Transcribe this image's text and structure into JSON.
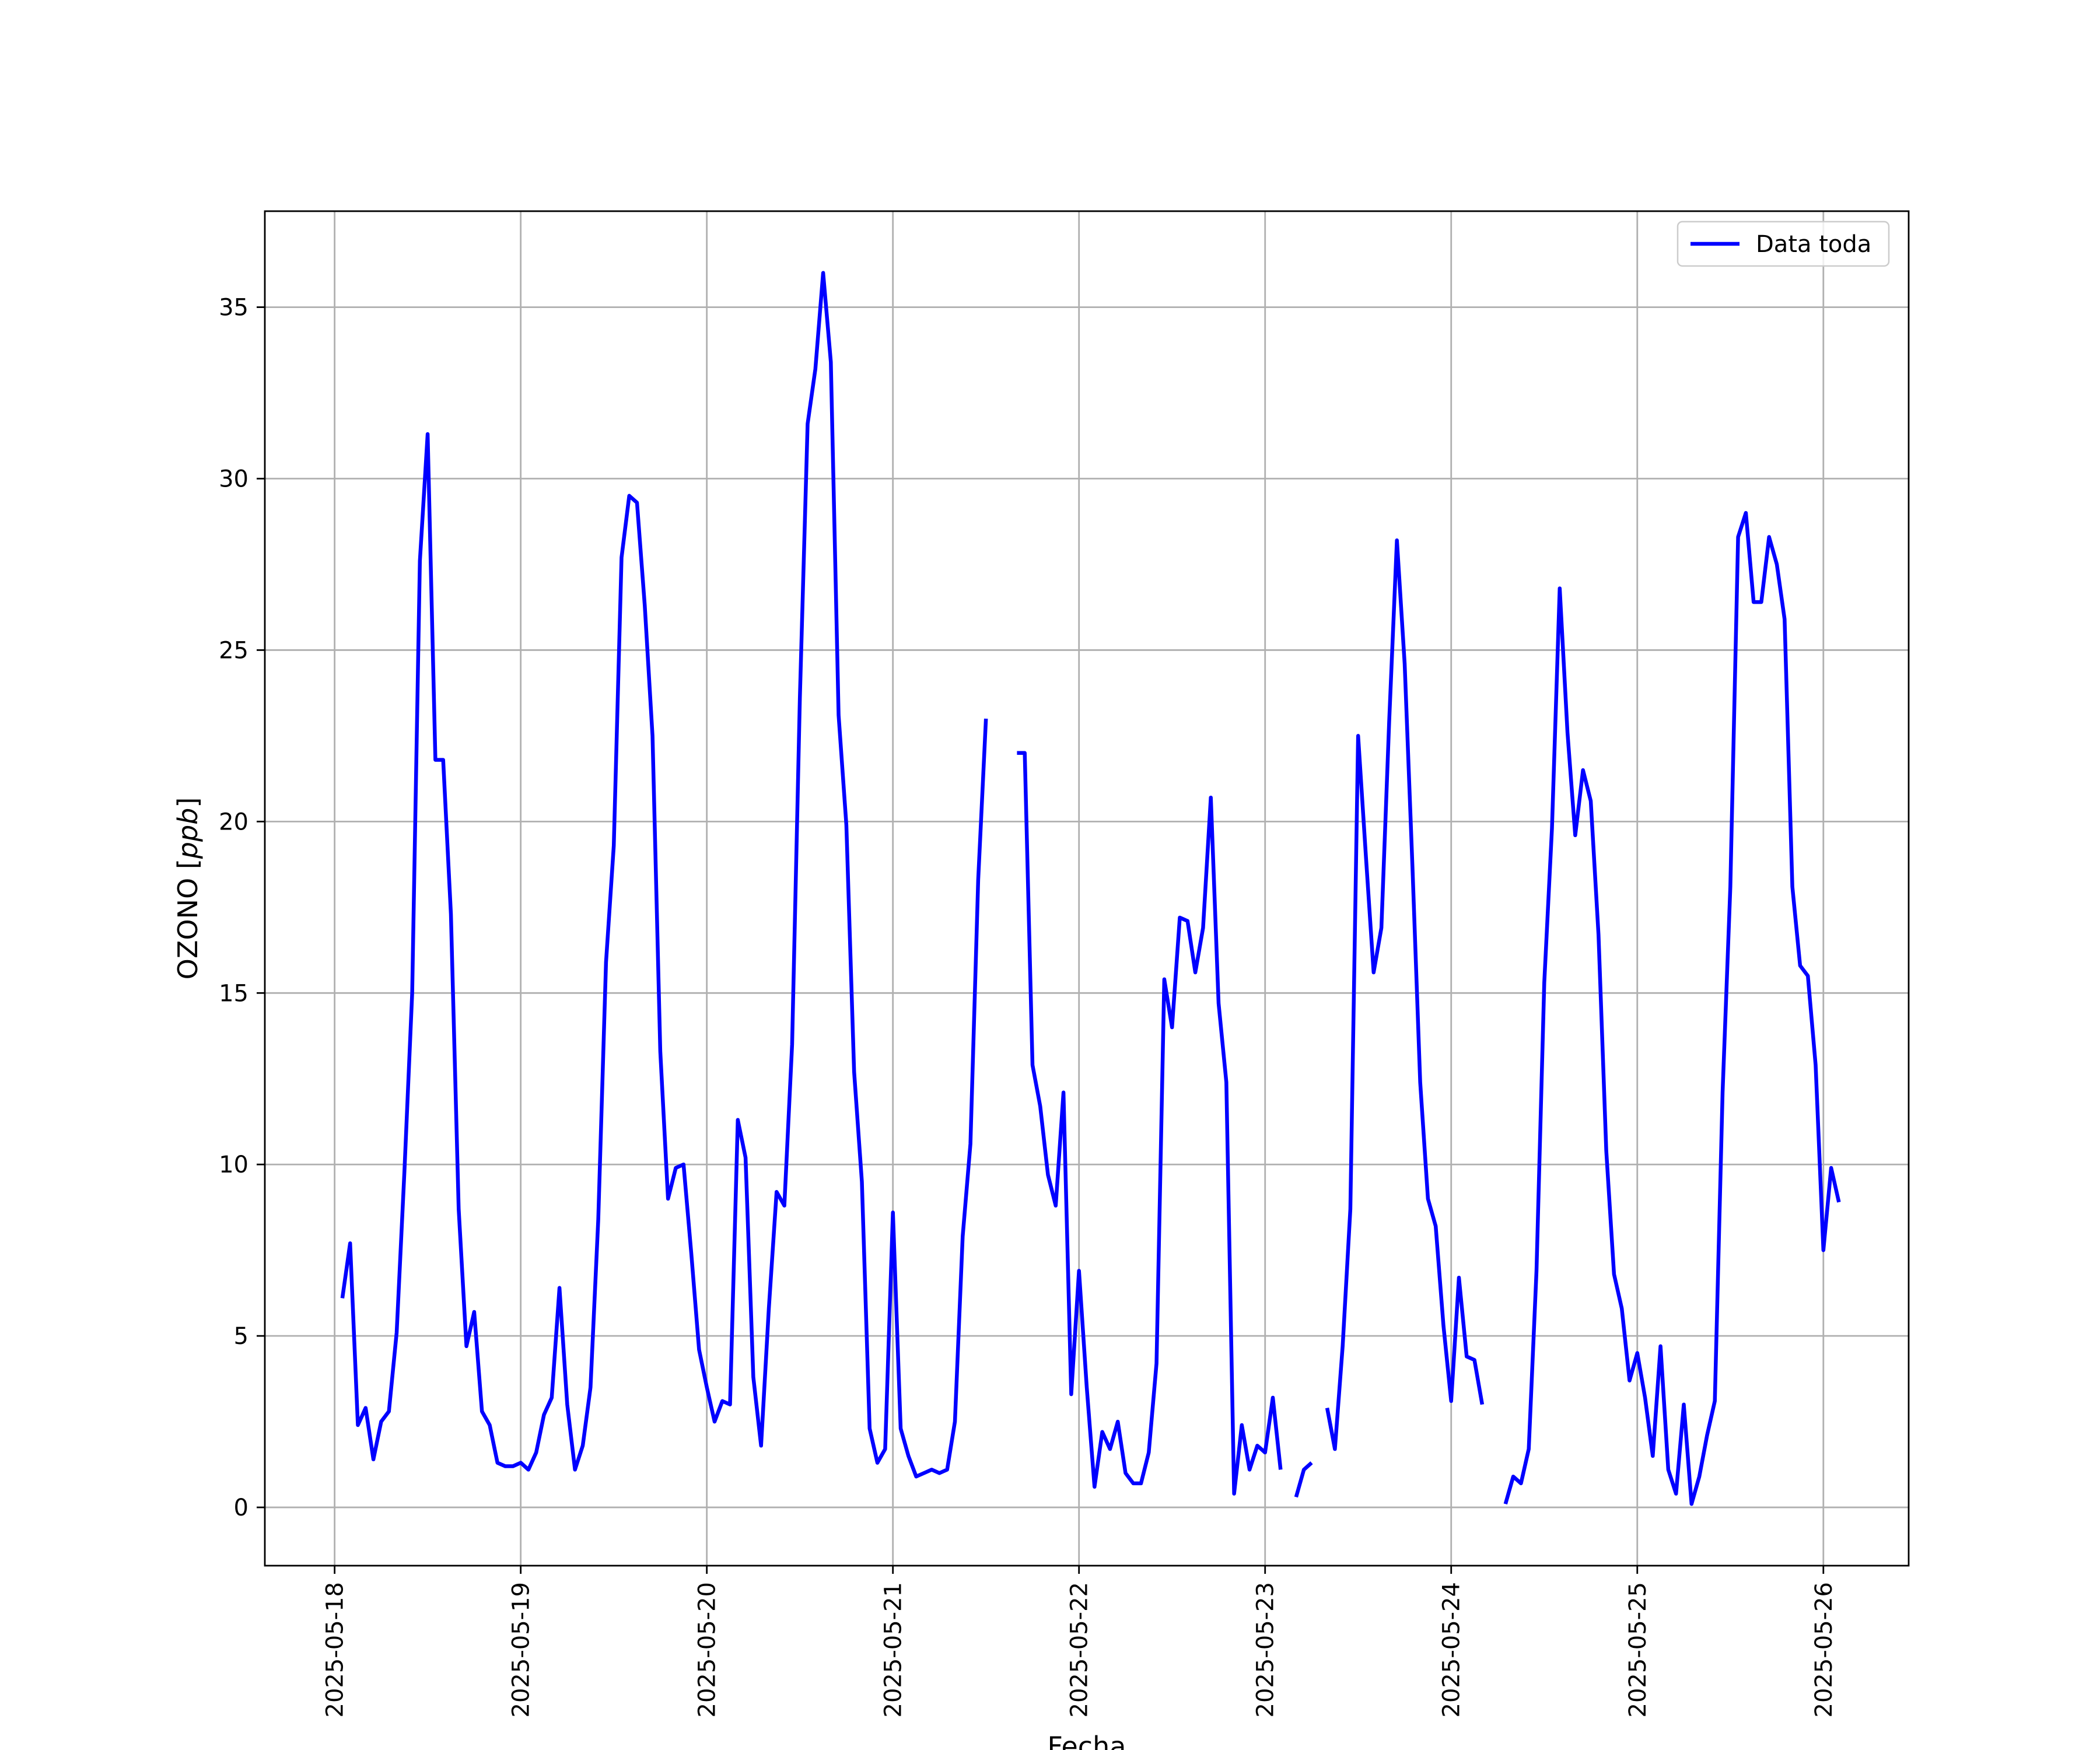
{
  "chart_data": {
    "type": "line",
    "title": "",
    "xlabel": "Fecha",
    "ylabel": "OZONO [ppb]",
    "ylabel_parts": {
      "plain": "OZONO [",
      "italic": "ppb",
      "close": "]"
    },
    "x_tick_labels": [
      "2025-05-18",
      "2025-05-19",
      "2025-05-20",
      "2025-05-21",
      "2025-05-22",
      "2025-05-23",
      "2025-05-24",
      "2025-05-25",
      "2025-05-26"
    ],
    "y_tick_labels": [
      "0",
      "5",
      "10",
      "15",
      "20",
      "25",
      "30",
      "35"
    ],
    "y_ticks": [
      0,
      5,
      10,
      15,
      20,
      25,
      30,
      35
    ],
    "xlim": [
      "2025-05-17 15:00",
      "2025-05-26 11:00"
    ],
    "ylim": [
      -1.7,
      37.8
    ],
    "grid": true,
    "legend": "top-right",
    "series": [
      {
        "name": "Data toda",
        "color": "#0000ff",
        "x_start": "2025-05-18 01:00",
        "x_step_hours": 1,
        "values": [
          6.1,
          7.7,
          2.4,
          2.9,
          1.4,
          2.5,
          2.8,
          5.1,
          9.8,
          15.0,
          27.6,
          31.3,
          21.8,
          21.8,
          17.3,
          8.7,
          4.7,
          5.7,
          2.8,
          2.4,
          1.3,
          1.2,
          1.2,
          1.3,
          1.1,
          1.6,
          2.7,
          3.2,
          6.4,
          3.0,
          1.1,
          1.8,
          3.5,
          8.4,
          15.9,
          19.3,
          27.7,
          29.5,
          29.3,
          26.3,
          22.5,
          13.3,
          9.0,
          9.9,
          10.0,
          7.4,
          4.6,
          3.5,
          2.5,
          3.1,
          3.0,
          11.3,
          10.2,
          3.8,
          1.8,
          5.8,
          9.2,
          8.8,
          13.5,
          23.6,
          31.6,
          33.2,
          36.0,
          33.4,
          23.1,
          19.9,
          12.7,
          9.5,
          2.3,
          1.3,
          1.7,
          8.6,
          2.3,
          1.5,
          0.9,
          1.0,
          1.1,
          1.0,
          1.1,
          2.5,
          7.9,
          10.6,
          18.3,
          23.0,
          null,
          null,
          null,
          22.0,
          22.0,
          12.9,
          11.7,
          9.7,
          8.8,
          12.1,
          3.3,
          6.9,
          3.5,
          0.6,
          2.2,
          1.7,
          2.5,
          1.0,
          0.7,
          0.7,
          1.6,
          4.2,
          15.4,
          14.0,
          17.2,
          17.1,
          15.6,
          16.9,
          20.7,
          14.7,
          12.4,
          0.4,
          2.4,
          1.1,
          1.8,
          1.6,
          3.2,
          1.1,
          null,
          0.3,
          1.1,
          1.3,
          null,
          2.9,
          1.7,
          4.7,
          8.7,
          22.5,
          19.0,
          15.6,
          16.9,
          22.9,
          28.2,
          24.6,
          18.7,
          12.4,
          9.0,
          8.2,
          5.3,
          3.1,
          6.7,
          4.4,
          4.3,
          3.0,
          null,
          null,
          0.1,
          0.9,
          0.7,
          1.7,
          6.9,
          15.3,
          19.8,
          26.8,
          22.6,
          19.6,
          21.5,
          20.6,
          16.7,
          10.4,
          6.8,
          5.8,
          3.7,
          4.5,
          3.2,
          1.5,
          4.7,
          1.1,
          0.4,
          3.0,
          0.1,
          0.9,
          2.1,
          3.1,
          12.1,
          18.1,
          28.3,
          29.0,
          26.4,
          26.4,
          28.3,
          27.5,
          25.9,
          18.1,
          15.8,
          15.5,
          12.9,
          7.5,
          9.9,
          8.9
        ]
      }
    ]
  }
}
